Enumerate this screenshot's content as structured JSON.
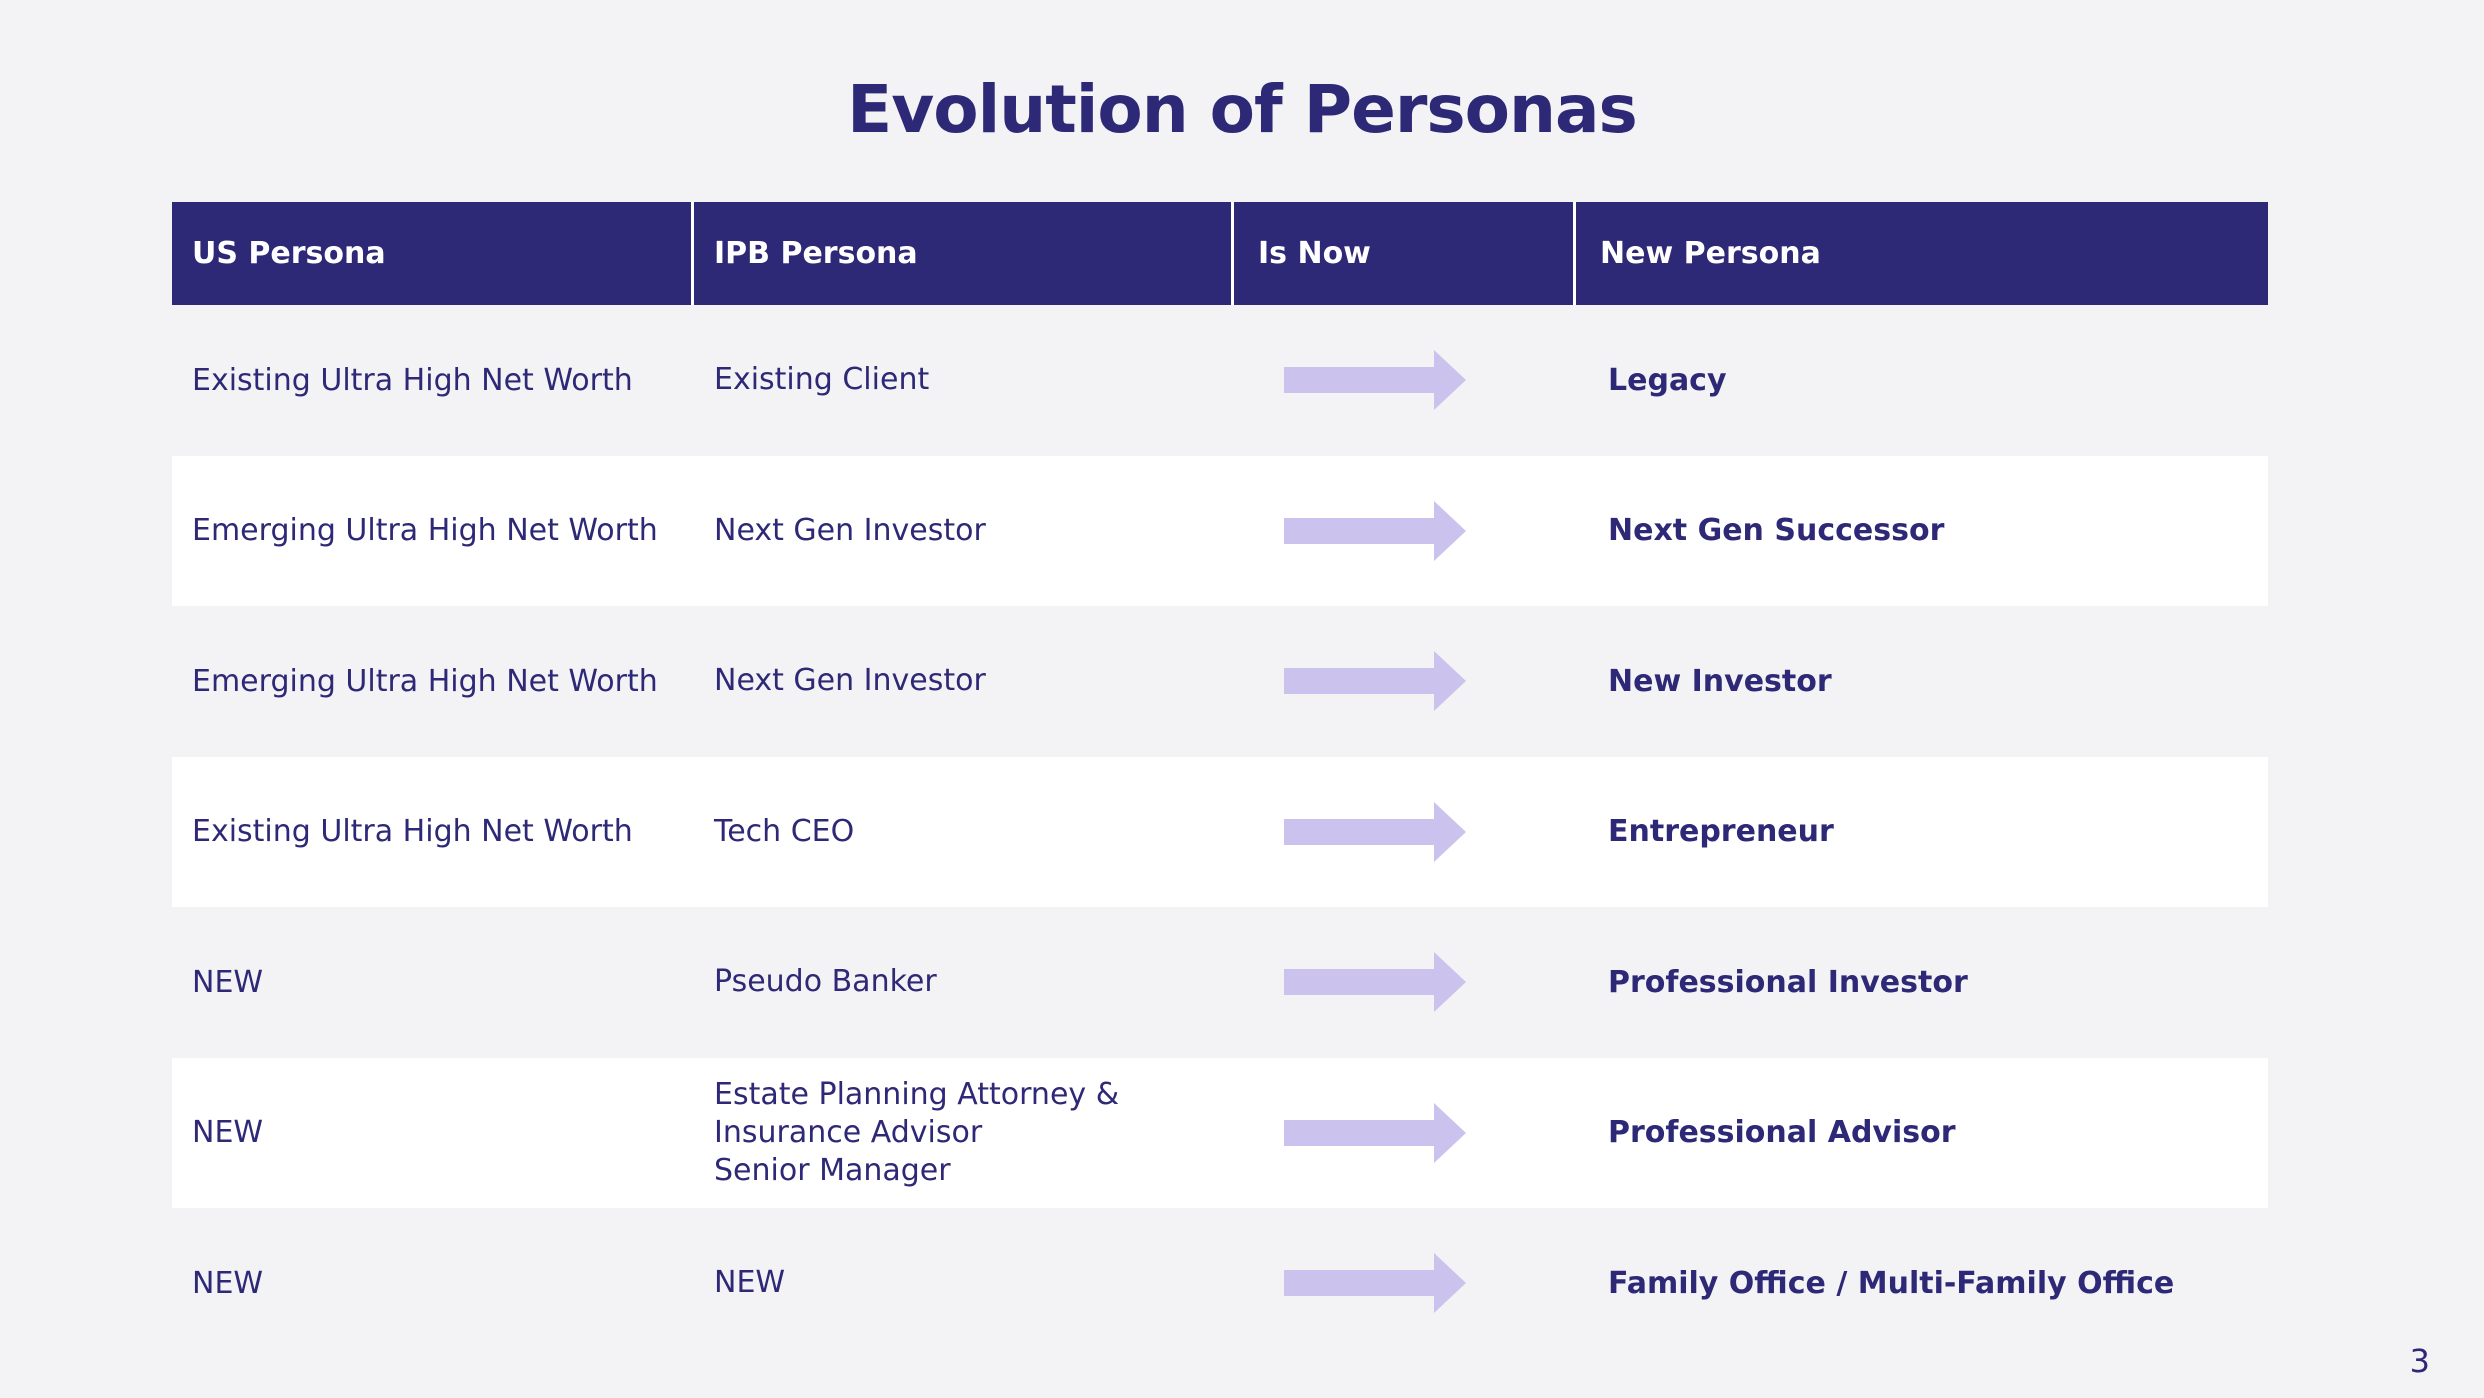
{
  "title": "Evolution of Personas",
  "table": {
    "headers": [
      "US Persona",
      "IPB Persona",
      "Is Now",
      "New Persona"
    ],
    "rows": [
      {
        "us": "Existing Ultra High Net Worth",
        "ipb": "Existing Client",
        "new": "Legacy"
      },
      {
        "us": "Emerging Ultra High Net Worth",
        "ipb": "Next Gen Investor",
        "new": "Next Gen Successor"
      },
      {
        "us": "Emerging Ultra High Net Worth",
        "ipb": "Next Gen Investor",
        "new": "New Investor"
      },
      {
        "us": "Existing Ultra High Net Worth",
        "ipb": "Tech CEO",
        "new": "Entrepreneur"
      },
      {
        "us": "NEW",
        "ipb": "Pseudo Banker",
        "new": "Professional Investor"
      },
      {
        "us": "NEW",
        "ipb": "Estate Planning Attorney &\nInsurance Advisor\nSenior Manager",
        "new": "Professional Advisor"
      },
      {
        "us": "NEW",
        "ipb": "NEW",
        "new": "Family Office / Multi-Family Office"
      }
    ]
  },
  "icons": {
    "transition": "right-arrow-icon"
  },
  "colors": {
    "primary": "#2e2977",
    "arrow": "#cbc3ee",
    "background": "#f3f3f5",
    "row_alt": "#ffffff"
  },
  "page_number": "3"
}
